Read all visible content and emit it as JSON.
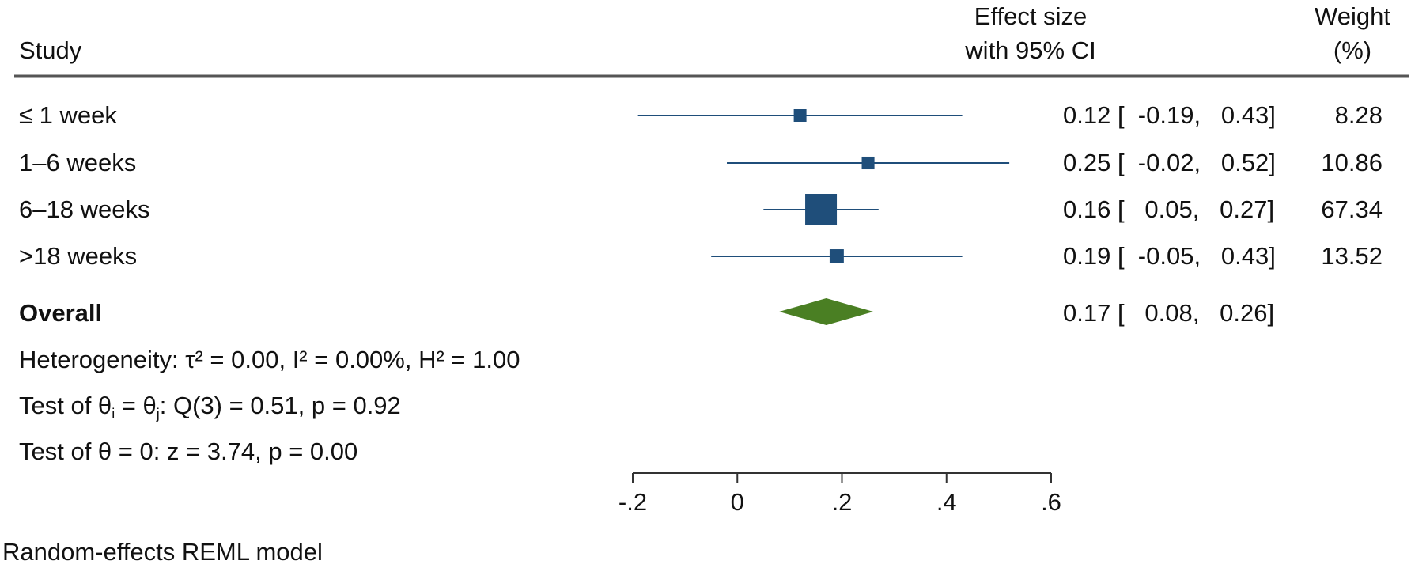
{
  "header": {
    "study": "Study",
    "effect_line1": "Effect size",
    "effect_line2": "with 95% CI",
    "weight_line1": "Weight",
    "weight_line2": "(%)"
  },
  "rows": [
    {
      "label": "≤ 1 week",
      "effect": 0.12,
      "lo": -0.19,
      "hi": 0.43,
      "ci_text": "0.12 [  -0.19,   0.43]",
      "weight": 8.28,
      "weight_text": "8.28"
    },
    {
      "label": "1–6 weeks",
      "effect": 0.25,
      "lo": -0.02,
      "hi": 0.52,
      "ci_text": "0.25 [  -0.02,   0.52]",
      "weight": 10.86,
      "weight_text": "10.86"
    },
    {
      "label": "6–18 weeks",
      "effect": 0.16,
      "lo": 0.05,
      "hi": 0.27,
      "ci_text": "0.16 [   0.05,   0.27]",
      "weight": 67.34,
      "weight_text": "67.34"
    },
    {
      "label": ">18 weeks",
      "effect": 0.19,
      "lo": -0.05,
      "hi": 0.43,
      "ci_text": "0.19 [  -0.05,   0.43]",
      "weight": 13.52,
      "weight_text": "13.52"
    }
  ],
  "overall": {
    "label": "Overall",
    "effect": 0.17,
    "lo": 0.08,
    "hi": 0.26,
    "ci_text": "0.17 [   0.08,   0.26]"
  },
  "stats": {
    "heterogeneity": "Heterogeneity: τ² = 0.00, I² = 0.00%, H² = 1.00",
    "test_pre": "Test of θ",
    "test_sub_i": "i",
    "test_mid": " = θ",
    "test_sub_j": "j",
    "test_post": ": Q(3) = 0.51, p = 0.92",
    "test_zero": "Test of θ = 0: z = 3.74, p = 0.00"
  },
  "footnote": "Random-effects REML model",
  "chart_data": {
    "type": "forest",
    "categories": [
      "≤ 1 week",
      "1–6 weeks",
      "6–18 weeks",
      ">18 weeks"
    ],
    "series": [
      {
        "effect": [
          0.12,
          0.25,
          0.16,
          0.19
        ],
        "ci_low": [
          -0.19,
          -0.02,
          0.05,
          -0.05
        ],
        "ci_high": [
          0.43,
          0.52,
          0.27,
          0.43
        ],
        "weight": [
          8.28,
          10.86,
          67.34,
          13.52
        ]
      }
    ],
    "overall": {
      "effect": 0.17,
      "ci_low": 0.08,
      "ci_high": 0.26
    },
    "xlim": [
      -0.2,
      0.6
    ],
    "x_ticks": [
      -0.2,
      0,
      0.2,
      0.4,
      0.6
    ],
    "x_tick_labels": [
      "-.2",
      "0",
      ".2",
      ".4",
      ".6"
    ],
    "grid": false,
    "colors": {
      "study": "#1f4e7a",
      "overall": "#4a7f23",
      "rule": "#555555"
    }
  }
}
